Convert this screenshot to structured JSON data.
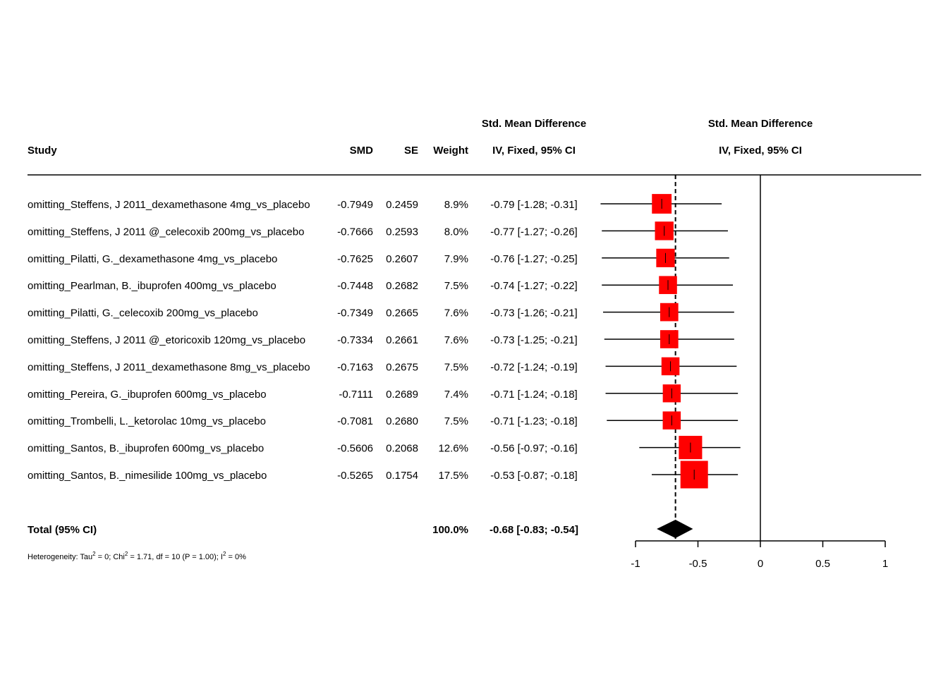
{
  "chart_data": {
    "type": "forest",
    "headers": {
      "study": "Study",
      "smd": "SMD",
      "se": "SE",
      "weight": "Weight",
      "ci_line1": "Std. Mean Difference",
      "ci_line2": "IV, Fixed, 95% CI",
      "plot_line1": "Std. Mean Difference",
      "plot_line2": "IV, Fixed, 95% CI"
    },
    "studies": [
      {
        "study": "omitting_Steffens, J 2011_dexamethasone 4mg_vs_placebo",
        "smd": "-0.7949",
        "se": "0.2459",
        "weight": "8.9%",
        "ci_text": "-0.79 [-1.28; -0.31]",
        "est": -0.79,
        "lower": -1.28,
        "upper": -0.31,
        "weight_pct": 8.9
      },
      {
        "study": "omitting_Steffens, J 2011 @_celecoxib 200mg_vs_placebo",
        "smd": "-0.7666",
        "se": "0.2593",
        "weight": "8.0%",
        "ci_text": "-0.77 [-1.27; -0.26]",
        "est": -0.77,
        "lower": -1.27,
        "upper": -0.26,
        "weight_pct": 8.0
      },
      {
        "study": "omitting_Pilatti, G._dexamethasone 4mg_vs_placebo",
        "smd": "-0.7625",
        "se": "0.2607",
        "weight": "7.9%",
        "ci_text": "-0.76 [-1.27; -0.25]",
        "est": -0.76,
        "lower": -1.27,
        "upper": -0.25,
        "weight_pct": 7.9
      },
      {
        "study": "omitting_Pearlman, B._ibuprofen 400mg_vs_placebo",
        "smd": "-0.7448",
        "se": "0.2682",
        "weight": "7.5%",
        "ci_text": "-0.74 [-1.27; -0.22]",
        "est": -0.74,
        "lower": -1.27,
        "upper": -0.22,
        "weight_pct": 7.5
      },
      {
        "study": "omitting_Pilatti, G._celecoxib 200mg_vs_placebo",
        "smd": "-0.7349",
        "se": "0.2665",
        "weight": "7.6%",
        "ci_text": "-0.73 [-1.26; -0.21]",
        "est": -0.73,
        "lower": -1.26,
        "upper": -0.21,
        "weight_pct": 7.6
      },
      {
        "study": "omitting_Steffens, J 2011 @_etoricoxib 120mg_vs_placebo",
        "smd": "-0.7334",
        "se": "0.2661",
        "weight": "7.6%",
        "ci_text": "-0.73 [-1.25; -0.21]",
        "est": -0.73,
        "lower": -1.25,
        "upper": -0.21,
        "weight_pct": 7.6
      },
      {
        "study": "omitting_Steffens, J 2011_dexamethasone 8mg_vs_placebo",
        "smd": "-0.7163",
        "se": "0.2675",
        "weight": "7.5%",
        "ci_text": "-0.72 [-1.24; -0.19]",
        "est": -0.72,
        "lower": -1.24,
        "upper": -0.19,
        "weight_pct": 7.5
      },
      {
        "study": "omitting_Pereira, G._ibuprofen 600mg_vs_placebo",
        "smd": "-0.7111",
        "se": "0.2689",
        "weight": "7.4%",
        "ci_text": "-0.71 [-1.24; -0.18]",
        "est": -0.71,
        "lower": -1.24,
        "upper": -0.18,
        "weight_pct": 7.4
      },
      {
        "study": "omitting_Trombelli, L._ketorolac 10mg_vs_placebo",
        "smd": "-0.7081",
        "se": "0.2680",
        "weight": "7.5%",
        "ci_text": "-0.71 [-1.23; -0.18]",
        "est": -0.71,
        "lower": -1.23,
        "upper": -0.18,
        "weight_pct": 7.5
      },
      {
        "study": "omitting_Santos, B._ibuprofen 600mg_vs_placebo",
        "smd": "-0.5606",
        "se": "0.2068",
        "weight": "12.6%",
        "ci_text": "-0.56 [-0.97; -0.16]",
        "est": -0.56,
        "lower": -0.97,
        "upper": -0.16,
        "weight_pct": 12.6
      },
      {
        "study": "omitting_Santos, B._nimesilide 100mg_vs_placebo",
        "smd": "-0.5265",
        "se": "0.1754",
        "weight": "17.5%",
        "ci_text": "-0.53 [-0.87; -0.18]",
        "est": -0.53,
        "lower": -0.87,
        "upper": -0.18,
        "weight_pct": 17.5
      }
    ],
    "total": {
      "label": "Total (95% CI)",
      "weight": "100.0%",
      "ci_text": "-0.68 [-0.83; -0.54]",
      "est": -0.68,
      "lower": -0.83,
      "upper": -0.54
    },
    "heterogeneity": {
      "prefix": "Heterogeneity: Tau",
      "sup1": "2",
      "part2": " = 0; Chi",
      "sup2": "2",
      "part3": " = 1.71, df = 10 (P = 1.00); I",
      "sup3": "2",
      "part4": " = 0%"
    },
    "xaxis": {
      "min": -1,
      "max": 1,
      "ticks": [
        -1,
        -0.5,
        0,
        0.5,
        1
      ],
      "tick_labels": [
        "-1",
        "-0.5",
        "0",
        "0.5",
        "1"
      ]
    },
    "colors": {
      "box": "#ff0000",
      "diamond": "#000000",
      "line": "#000000"
    }
  }
}
